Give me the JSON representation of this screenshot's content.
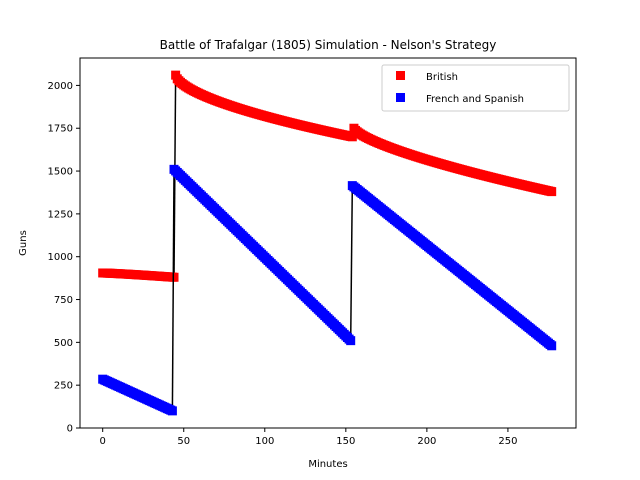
{
  "chart_data": {
    "type": "line",
    "title": "Battle of Trafalgar (1805) Simulation - Nelson's Strategy",
    "xlabel": "Minutes",
    "ylabel": "Guns",
    "xlim": [
      -14,
      292
    ],
    "ylim": [
      0,
      2160
    ],
    "xticks": [
      0,
      50,
      100,
      150,
      200,
      250
    ],
    "yticks": [
      0,
      250,
      500,
      750,
      1000,
      1250,
      1500,
      1750,
      2000
    ],
    "grid": false,
    "legend_position": "top-right",
    "series": [
      {
        "name": "British",
        "color": "#ff0000",
        "marker": "square",
        "segments": [
          {
            "x_start": 0,
            "x_end": 44,
            "y_start": 905,
            "y_end": 880,
            "curve": 1.2
          },
          {
            "x_start": 45,
            "x_end": 154,
            "y_start": 2060,
            "y_end": 1700,
            "curve": 0.6
          },
          {
            "x_start": 155,
            "x_end": 277,
            "y_start": 1750,
            "y_end": 1380,
            "curve": 0.7
          }
        ]
      },
      {
        "name": "French and Spanish",
        "color": "#0000ff",
        "marker": "square",
        "segments": [
          {
            "x_start": 0,
            "x_end": 43,
            "y_start": 285,
            "y_end": 100,
            "curve": 1.0
          },
          {
            "x_start": 44,
            "x_end": 153,
            "y_start": 1510,
            "y_end": 510,
            "curve": 1.0
          },
          {
            "x_start": 154,
            "x_end": 277,
            "y_start": 1415,
            "y_end": 480,
            "curve": 1.0
          }
        ]
      }
    ],
    "connector_color": "#000000"
  }
}
